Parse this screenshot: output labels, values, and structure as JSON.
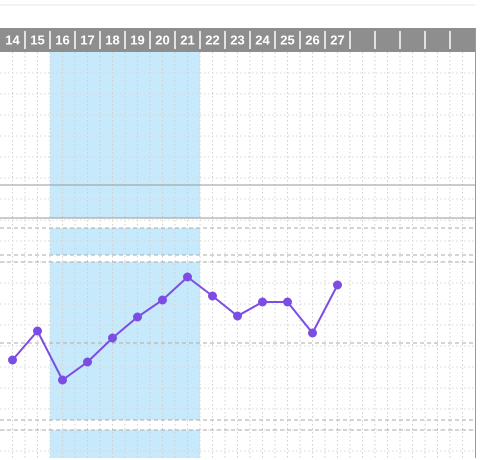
{
  "chart_data": {
    "type": "line",
    "categories": [
      "14",
      "15",
      "16",
      "17",
      "18",
      "19",
      "20",
      "21",
      "22",
      "23",
      "24",
      "25",
      "26",
      "27",
      null,
      null,
      null,
      null,
      null
    ],
    "series": [
      {
        "color": "#7c4de3",
        "values": [
          100,
          129,
          80,
          98,
          122,
          143,
          160,
          183,
          164,
          144,
          158,
          158,
          127,
          175,
          null,
          null,
          null,
          null,
          null
        ]
      }
    ],
    "ylim": [
      0,
      460
    ],
    "highlight_color": "#c6e9fb"
  }
}
